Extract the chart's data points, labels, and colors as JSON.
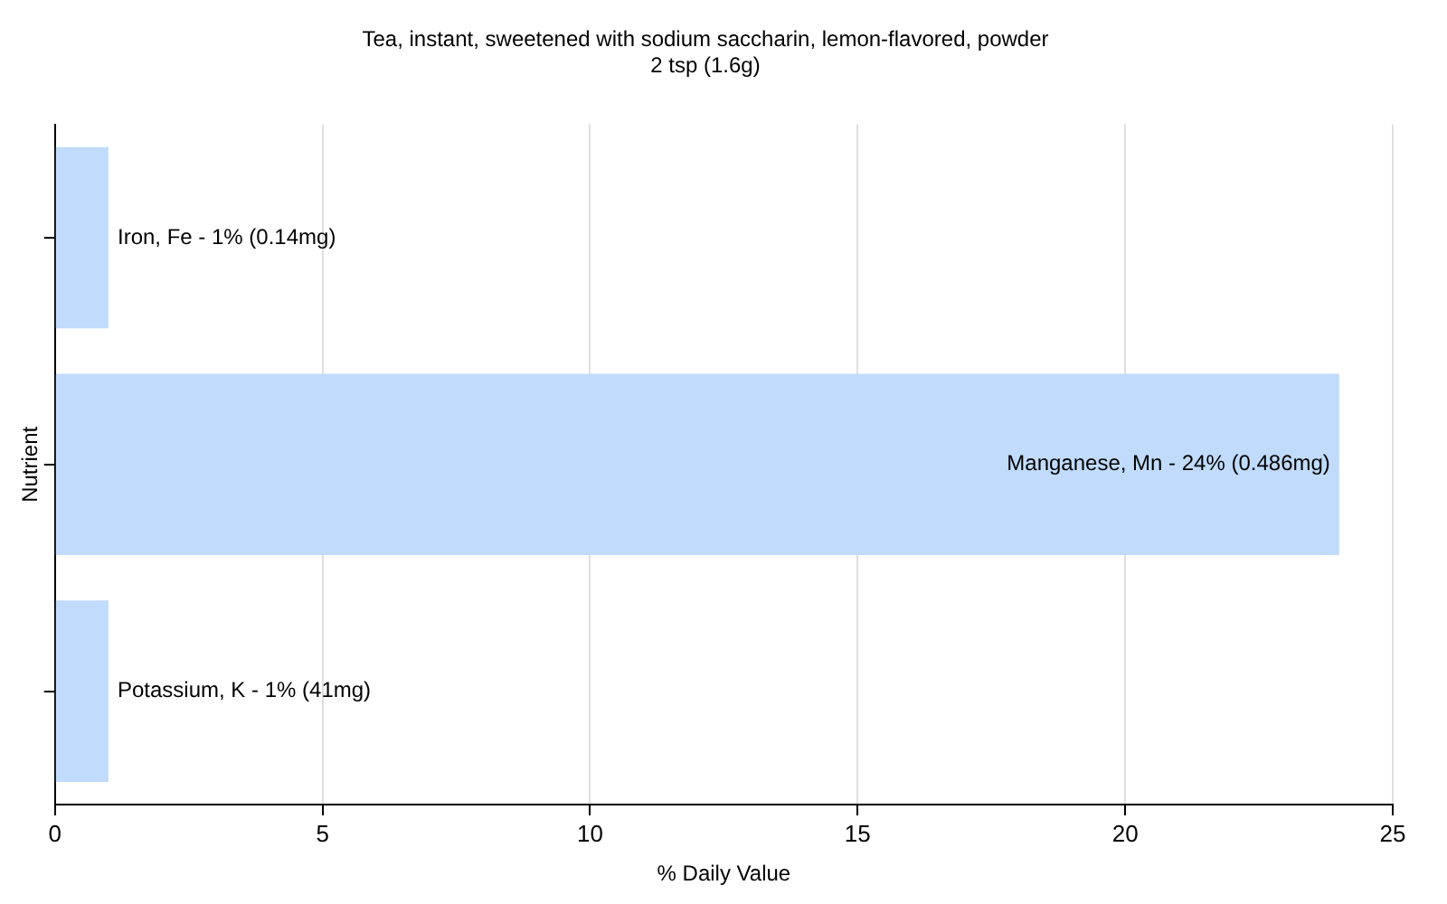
{
  "chart_data": {
    "type": "bar",
    "orientation": "horizontal",
    "title": "Tea, instant, sweetened with sodium saccharin, lemon-flavored, powder",
    "subtitle": "2 tsp (1.6g)",
    "xlabel": "% Daily Value",
    "ylabel": "Nutrient",
    "categories": [
      null,
      null,
      null
    ],
    "values": [
      1,
      24,
      1
    ],
    "annotations": [
      "Iron, Fe - 1% (0.14mg)",
      "Manganese, Mn - 24% (0.486mg)",
      "Potassium, K - 1% (41mg)"
    ],
    "tick_labels": "x",
    "color": "#c0dbfb",
    "xlim": [
      0,
      25
    ],
    "xticks": [
      0,
      5,
      10,
      15,
      20,
      25
    ],
    "grid": "x",
    "legend": false
  }
}
